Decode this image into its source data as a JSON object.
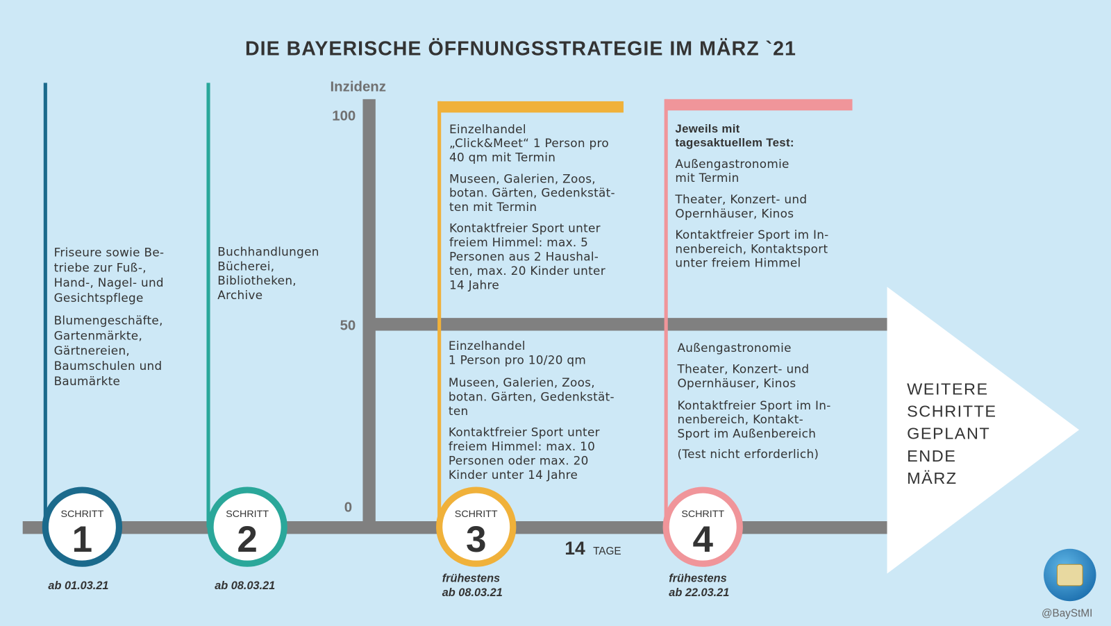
{
  "title": "DIE BAYERISCHE ÖFFNUNGSSTRATEGIE IM MÄRZ `21",
  "axis": {
    "label": "Inzidenz",
    "ticks": [
      "100",
      "50",
      "0"
    ]
  },
  "steps": [
    {
      "label": "SCHRITT",
      "number": "1",
      "date": [
        "ab 01.03.21"
      ],
      "items": [
        [
          "Friseure sowie Be-",
          "triebe zur Fuß-,",
          "Hand-, Nagel- und",
          "Gesichtspflege"
        ],
        [
          "Blumengeschäfte,",
          "Gartenmärkte,",
          "Gärtnereien,",
          "Baumschulen und",
          "Baumärkte"
        ]
      ]
    },
    {
      "label": "SCHRITT",
      "number": "2",
      "date": [
        "ab 08.03.21"
      ],
      "items": [
        [
          "Buchhandlungen",
          "Bücherei,",
          "Bibliotheken,",
          "Archive"
        ]
      ]
    },
    {
      "label": "SCHRITT",
      "number": "3",
      "date": [
        "frühestens",
        "ab 08.03.21"
      ],
      "upper": [
        [
          "Einzelhandel",
          "„Click&Meet“ 1 Person pro",
          "40 qm mit Termin"
        ],
        [
          "Museen, Galerien, Zoos,",
          "botan. Gärten, Gedenkstät-",
          "ten mit Termin"
        ],
        [
          "Kontaktfreier Sport unter",
          "freiem Himmel: max. 5",
          "Personen aus 2 Haushal-",
          "ten,  max. 20 Kinder unter",
          "14 Jahre"
        ]
      ],
      "lower": [
        [
          "Einzelhandel",
          "1 Person pro 10/20 qm"
        ],
        [
          "Museen, Galerien, Zoos,",
          "botan. Gärten, Gedenkstät-",
          "ten"
        ],
        [
          "Kontaktfreier Sport unter",
          "freiem Himmel: max. 10",
          "Personen oder max. 20",
          "Kinder unter 14 Jahre"
        ]
      ]
    },
    {
      "label": "SCHRITT",
      "number": "4",
      "date": [
        "frühestens",
        "ab 22.03.21"
      ],
      "heading": [
        "Jeweils mit",
        "tagesaktuellem Test:"
      ],
      "upper": [
        [
          "Außengastronomie",
          "mit Termin"
        ],
        [
          "Theater, Konzert- und",
          "Opernhäuser, Kinos"
        ],
        [
          "Kontaktfreier Sport im In-",
          "nenbereich, Kontaktsport",
          "unter freiem Himmel"
        ]
      ],
      "lower": [
        [
          "Außengastronomie"
        ],
        [
          "Theater, Konzert- und",
          "Opernhäuser, Kinos"
        ],
        [
          "Kontaktfreier Sport im In-",
          "nenbereich, Kontakt-",
          "Sport im Außenbereich"
        ],
        [
          "(Test nicht erforderlich)"
        ]
      ]
    }
  ],
  "interval": {
    "number": "14",
    "unit": "TAGE"
  },
  "outlook": [
    "WEITERE",
    "SCHRITTE",
    "GEPLANT",
    "ENDE",
    "MÄRZ"
  ],
  "credit": "@BayStMI"
}
